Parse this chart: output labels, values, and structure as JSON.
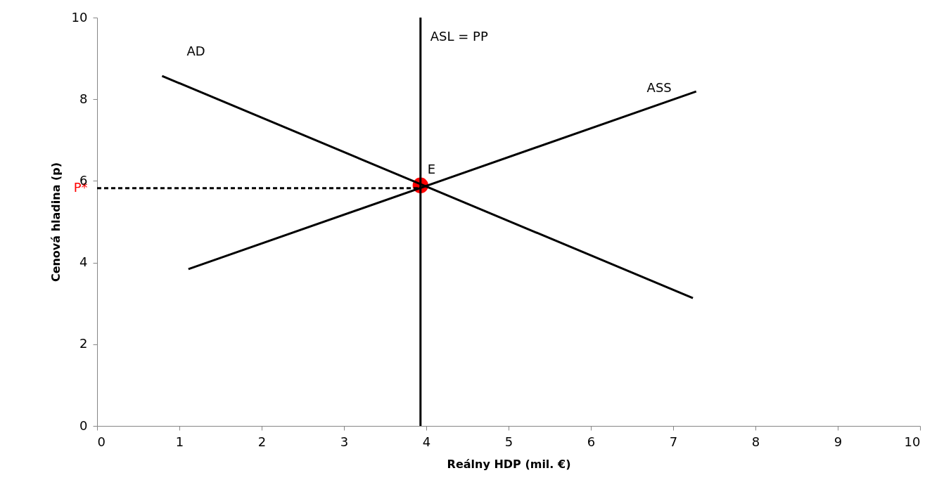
{
  "chart_data": {
    "type": "line",
    "xlabel": "Reálny HDP (mil. €)",
    "ylabel": "Cenová hladina (p)",
    "xlim": [
      0,
      10
    ],
    "ylim": [
      0,
      10
    ],
    "xticks": [
      0,
      1,
      2,
      3,
      4,
      5,
      6,
      7,
      8,
      9,
      10
    ],
    "yticks": [
      0,
      2,
      4,
      {
        "value": 5.82,
        "label": "P*"
      },
      6,
      8,
      10
    ],
    "grid": false,
    "marker": "none",
    "series": [
      {
        "type": "scatter",
        "name": "E",
        "color": "#ff0000",
        "marker": "circle",
        "x": [
          3.93
        ],
        "values": [
          5.89
        ]
      },
      {
        "name": "AD",
        "color": "#000000",
        "x": [
          0.79,
          7.24
        ],
        "values": [
          8.57,
          3.13
        ]
      },
      {
        "name": "ASS",
        "color": "#000000",
        "x": [
          1.11,
          7.28
        ],
        "values": [
          3.84,
          8.19
        ]
      },
      {
        "name": "ASL = PP",
        "color": "#000000",
        "x": [
          3.93,
          3.93
        ],
        "values": [
          0,
          10
        ]
      },
      {
        "color": "#000000",
        "line_style": "dashed",
        "x": [
          0,
          3.93
        ],
        "values": [
          5.82,
          5.82
        ]
      }
    ]
  }
}
